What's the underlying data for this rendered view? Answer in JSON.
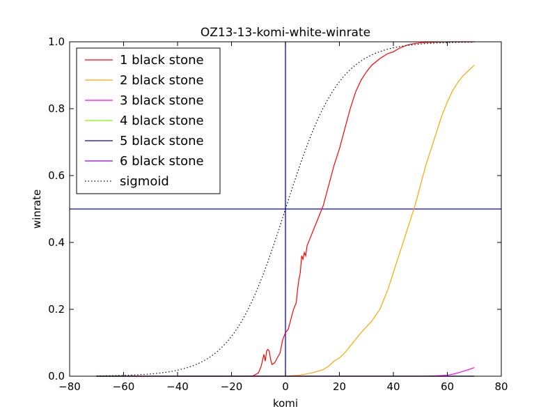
{
  "chart_data": {
    "type": "line",
    "title": "OZ13-13-komi-white-winrate",
    "xlabel": "komi",
    "ylabel": "winrate",
    "xlim": [
      -80,
      80
    ],
    "ylim": [
      0.0,
      1.0
    ],
    "xticks": [
      -80,
      -60,
      -40,
      -20,
      0,
      20,
      40,
      60,
      80
    ],
    "xtick_labels": [
      "−80",
      "−60",
      "−40",
      "−20",
      "0",
      "20",
      "40",
      "60",
      "80"
    ],
    "yticks": [
      0.0,
      0.2,
      0.4,
      0.6,
      0.8,
      1.0
    ],
    "ytick_labels": [
      "0.0",
      "0.2",
      "0.4",
      "0.6",
      "0.8",
      "1.0"
    ],
    "grid": false,
    "legend_position": "top-left",
    "reference_lines": [
      {
        "orientation": "vertical",
        "x": 0,
        "color": "#0000ff"
      },
      {
        "orientation": "horizontal",
        "y": 0.5,
        "color": "#0000ff"
      }
    ],
    "series": [
      {
        "name": "1 black stone",
        "color": "#ff0000",
        "style": "solid",
        "x": [
          -70,
          -15,
          -12,
          -10,
          -9,
          -8,
          -7.5,
          -7,
          -6.5,
          -6,
          -5.5,
          -5,
          -4,
          -3,
          -2,
          -1.5,
          -1,
          0,
          1,
          2,
          3,
          4,
          4.5,
          5,
          5.5,
          6,
          6.5,
          7,
          7.5,
          8,
          9,
          10,
          12,
          14,
          16,
          17,
          18,
          20,
          22,
          24,
          26,
          28,
          30,
          32,
          35,
          38,
          40,
          42,
          45,
          48,
          50,
          52,
          55,
          60,
          65,
          70
        ],
        "y": [
          0,
          0,
          0.001,
          0.01,
          0.03,
          0.065,
          0.045,
          0.075,
          0.08,
          0.075,
          0.05,
          0.035,
          0.04,
          0.055,
          0.07,
          0.09,
          0.11,
          0.13,
          0.14,
          0.17,
          0.2,
          0.22,
          0.26,
          0.29,
          0.31,
          0.36,
          0.35,
          0.37,
          0.36,
          0.39,
          0.41,
          0.43,
          0.47,
          0.51,
          0.57,
          0.6,
          0.63,
          0.68,
          0.74,
          0.8,
          0.85,
          0.885,
          0.91,
          0.93,
          0.95,
          0.965,
          0.97,
          0.98,
          0.99,
          0.995,
          0.997,
          0.998,
          0.999,
          1.0,
          1.0,
          1.0
        ]
      },
      {
        "name": "2 black stone",
        "color": "#ffa500",
        "style": "solid",
        "x": [
          -70,
          0,
          5,
          10,
          14,
          16,
          18,
          20,
          22,
          25,
          28,
          32,
          35,
          38,
          40,
          42,
          44,
          46,
          48,
          50,
          52,
          54,
          56,
          58,
          60,
          62,
          64,
          66,
          68,
          70
        ],
        "y": [
          0,
          0,
          0.003,
          0.01,
          0.02,
          0.03,
          0.045,
          0.055,
          0.07,
          0.1,
          0.13,
          0.165,
          0.2,
          0.26,
          0.31,
          0.36,
          0.41,
          0.46,
          0.51,
          0.57,
          0.63,
          0.68,
          0.73,
          0.78,
          0.82,
          0.855,
          0.88,
          0.9,
          0.915,
          0.93
        ]
      },
      {
        "name": "3 black stone",
        "color": "#ff00ff",
        "style": "solid",
        "x": [
          -70,
          40,
          50,
          55,
          58,
          60,
          62,
          64,
          66,
          68,
          70
        ],
        "y": [
          0,
          0,
          0,
          0.001,
          0.002,
          0.003,
          0.006,
          0.01,
          0.015,
          0.02,
          0.026
        ]
      },
      {
        "name": "4 black stone",
        "color": "#7cfc00",
        "style": "solid",
        "x": [
          -70,
          70
        ],
        "y": [
          0,
          0
        ]
      },
      {
        "name": "5 black stone",
        "color": "#0000cd",
        "style": "solid",
        "x": [
          -70,
          70
        ],
        "y": [
          0,
          0
        ]
      },
      {
        "name": "6 black stone",
        "color": "#9400d3",
        "style": "solid",
        "x": [
          -70,
          70
        ],
        "y": [
          0,
          0
        ]
      },
      {
        "name": "sigmoid",
        "color": "#000000",
        "style": "dotted",
        "function": "sigmoid",
        "scale": 10,
        "x_range": [
          -70,
          70
        ]
      }
    ]
  }
}
